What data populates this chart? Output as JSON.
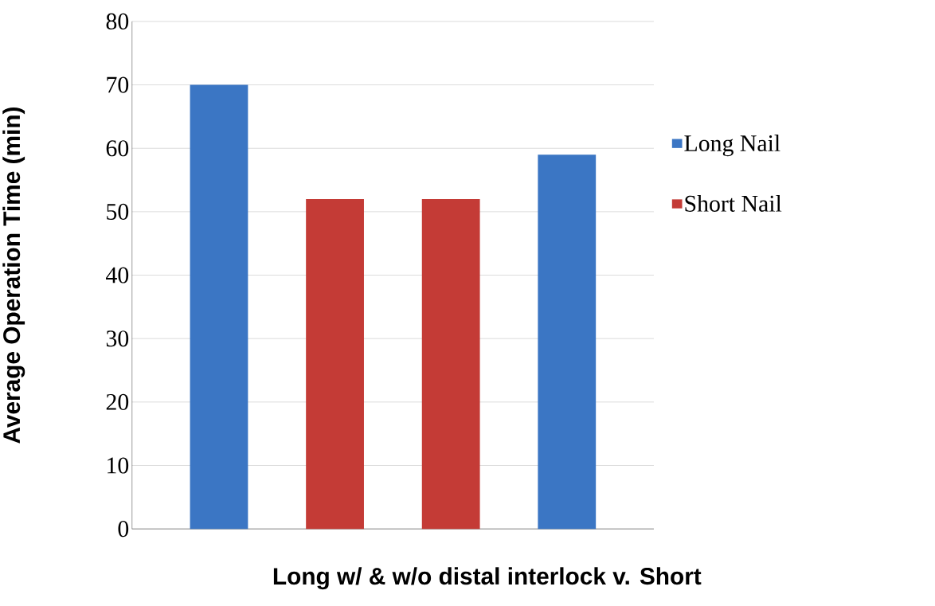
{
  "chart_data": {
    "type": "bar",
    "xlabel": "Long w/ & w/o distal interlock v. Short",
    "ylabel": "Average Operation Time (min)",
    "categories": [
      null,
      null,
      null,
      null
    ],
    "stacked": true,
    "series": [
      {
        "name": "Long Nail",
        "color": "#3b76c4",
        "values": [
          70,
          null,
          null,
          59
        ]
      },
      {
        "name": "Short Nail",
        "color": "#c43b36",
        "values": [
          null,
          52,
          52,
          null
        ]
      }
    ],
    "ylim": [
      0,
      80
    ],
    "yticks": [
      0,
      10,
      20,
      30,
      40,
      50,
      60,
      70,
      80
    ],
    "grid": "y",
    "legend": "right"
  }
}
